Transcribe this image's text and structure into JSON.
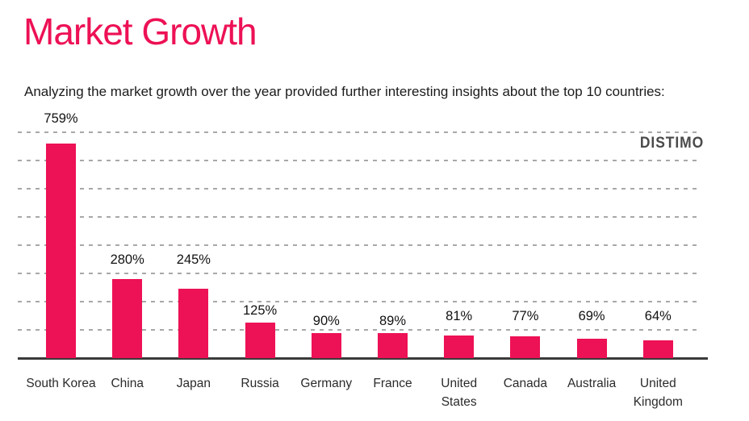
{
  "page": {
    "title": "Market Growth",
    "subtitle": "Analyzing the market growth over the year provided further interesting insights about the top 10 countries:"
  },
  "brand": {
    "logo_text": "DISTIMO"
  },
  "colors": {
    "accent": "#ED1155",
    "axis": "#3a3a3a",
    "gridline": "#a8a8a8",
    "text": "#1b1b1b",
    "logo": "#4a4a4a"
  },
  "chart_data": {
    "type": "bar",
    "title": "Market Growth",
    "xlabel": "",
    "ylabel": "",
    "categories": [
      "South Korea",
      "China",
      "Japan",
      "Russia",
      "Germany",
      "France",
      "United States",
      "Canada",
      "Australia",
      "United Kingdom"
    ],
    "values": [
      759,
      280,
      245,
      125,
      90,
      89,
      81,
      77,
      69,
      64
    ],
    "value_labels": [
      "759%",
      "280%",
      "245%",
      "125%",
      "90%",
      "89%",
      "81%",
      "77%",
      "69%",
      "64%"
    ],
    "unit": "%",
    "ylim": [
      0,
      800
    ],
    "gridline_step": 100,
    "grid": "horizontal-dashed",
    "legend": "none",
    "bar_color": "#ED1155"
  }
}
